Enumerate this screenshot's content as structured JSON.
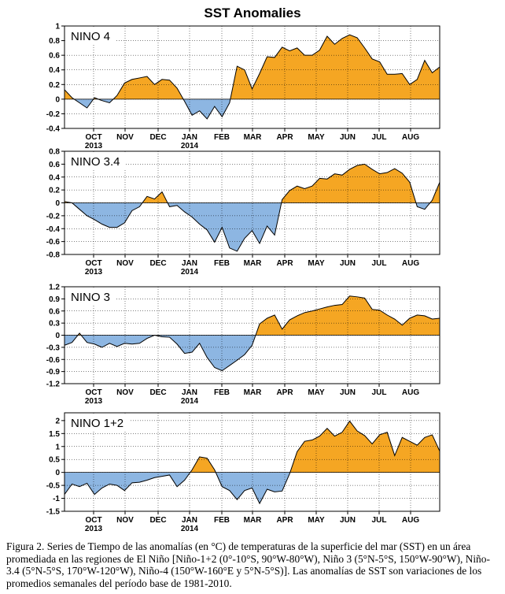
{
  "main_title": "SST Anomalies",
  "caption": "Figura 2. Series de Tiempo de las anomalías (en °C) de temperaturas de la superficie del mar (SST) en un área promediada en las regiones de El Niño [Niño-1+2 (0°-10°S, 90°W-80°W), Niño 3 (5°N-5°S, 150°W-90°W), Niño-3.4 (5°N-5°S, 170°W-120°W), Niño-4 (150°W-160°E y 5°N-5°S)]. Las anomalías de SST son variaciones de los promedios semanales del período base de 1981-2010.",
  "colors": {
    "positive": "#f5a623",
    "negative": "#8db6e2",
    "line": "#000000",
    "grid": "#000000"
  },
  "chart_data": [
    {
      "type": "area",
      "title": "NINO 4",
      "month_labels": [
        "OCT",
        "NOV",
        "DEC",
        "JAN",
        "FEB",
        "MAR",
        "APR",
        "MAY",
        "JUN",
        "JUL",
        "AUG"
      ],
      "year_labels": [
        {
          "month": "OCT",
          "year": "2013"
        },
        {
          "month": "JAN",
          "year": "2014"
        }
      ],
      "yticks": [
        "1",
        "0.8",
        "0.6",
        "0.4",
        "0.2",
        "0",
        "-0.2",
        "-0.4"
      ],
      "ylim": [
        -0.4,
        1
      ],
      "week": [
        0,
        1,
        2,
        3,
        4,
        5,
        6,
        7,
        8,
        9,
        10,
        11,
        12,
        13,
        14,
        15,
        16,
        17,
        18,
        19,
        20,
        21,
        22,
        23,
        24,
        25,
        26,
        27,
        28,
        29,
        30,
        31,
        32,
        33,
        34,
        35,
        36,
        37,
        38,
        39,
        40,
        41,
        42,
        43,
        44,
        45,
        46,
        47,
        48,
        49,
        50
      ],
      "values": [
        0.13,
        0.02,
        -0.05,
        -0.12,
        0.02,
        -0.02,
        -0.05,
        0.05,
        0.22,
        0.27,
        0.29,
        0.31,
        0.2,
        0.27,
        0.26,
        0.15,
        -0.03,
        -0.22,
        -0.16,
        -0.27,
        -0.1,
        -0.24,
        -0.05,
        0.45,
        0.4,
        0.14,
        0.35,
        0.58,
        0.57,
        0.71,
        0.66,
        0.7,
        0.6,
        0.6,
        0.67,
        0.86,
        0.75,
        0.83,
        0.88,
        0.84,
        0.7,
        0.55,
        0.51,
        0.34,
        0.34,
        0.35,
        0.2,
        0.27,
        0.53,
        0.36,
        0.44
      ]
    },
    {
      "type": "area",
      "title": "NINO 3.4",
      "month_labels": [
        "OCT",
        "NOV",
        "DEC",
        "JAN",
        "FEB",
        "MAR",
        "APR",
        "MAY",
        "JUN",
        "JUL",
        "AUG"
      ],
      "year_labels": [
        {
          "month": "OCT",
          "year": "2013"
        },
        {
          "month": "JAN",
          "year": "2014"
        }
      ],
      "yticks": [
        "0.8",
        "0.6",
        "0.4",
        "0.2",
        "0",
        "-0.2",
        "-0.4",
        "-0.6",
        "-0.8"
      ],
      "ylim": [
        -0.8,
        0.8
      ],
      "week": [
        0,
        1,
        2,
        3,
        4,
        5,
        6,
        7,
        8,
        9,
        10,
        11,
        12,
        13,
        14,
        15,
        16,
        17,
        18,
        19,
        20,
        21,
        22,
        23,
        24,
        25,
        26,
        27,
        28,
        29,
        30,
        31,
        32,
        33,
        34,
        35,
        36,
        37,
        38,
        39,
        40,
        41,
        42,
        43,
        44,
        45,
        46,
        47,
        48,
        49,
        50
      ],
      "values": [
        0.02,
        0.0,
        -0.1,
        -0.2,
        -0.26,
        -0.33,
        -0.38,
        -0.38,
        -0.31,
        -0.12,
        -0.06,
        0.1,
        0.06,
        0.17,
        -0.06,
        -0.04,
        -0.14,
        -0.22,
        -0.33,
        -0.42,
        -0.61,
        -0.38,
        -0.7,
        -0.75,
        -0.55,
        -0.43,
        -0.63,
        -0.36,
        -0.5,
        0.05,
        0.19,
        0.26,
        0.22,
        0.26,
        0.38,
        0.37,
        0.45,
        0.43,
        0.52,
        0.58,
        0.6,
        0.52,
        0.45,
        0.47,
        0.53,
        0.46,
        0.32,
        -0.06,
        -0.1,
        0.04,
        0.32
      ]
    },
    {
      "type": "area",
      "title": "NINO 3",
      "month_labels": [
        "OCT",
        "NOV",
        "DEC",
        "JAN",
        "FEB",
        "MAR",
        "APR",
        "MAY",
        "JUN",
        "JUL",
        "AUG"
      ],
      "year_labels": [
        {
          "month": "OCT",
          "year": "2013"
        },
        {
          "month": "JAN",
          "year": "2014"
        }
      ],
      "yticks": [
        "1.2",
        "0.9",
        "0.6",
        "0.3",
        "0",
        "-0.3",
        "-0.6",
        "-0.9",
        "-1.2"
      ],
      "ylim": [
        -1.2,
        1.2
      ],
      "week": [
        0,
        1,
        2,
        3,
        4,
        5,
        6,
        7,
        8,
        9,
        10,
        11,
        12,
        13,
        14,
        15,
        16,
        17,
        18,
        19,
        20,
        21,
        22,
        23,
        24,
        25,
        26,
        27,
        28,
        29,
        30,
        31,
        32,
        33,
        34,
        35,
        36,
        37,
        38,
        39,
        40,
        41,
        42,
        43,
        44,
        45,
        46,
        47,
        48,
        49,
        50
      ],
      "values": [
        -0.25,
        -0.18,
        0.05,
        -0.18,
        -0.22,
        -0.3,
        -0.2,
        -0.28,
        -0.2,
        -0.22,
        -0.2,
        -0.08,
        0.0,
        -0.04,
        -0.05,
        -0.22,
        -0.45,
        -0.42,
        -0.2,
        -0.55,
        -0.8,
        -0.88,
        -0.75,
        -0.62,
        -0.48,
        -0.25,
        0.28,
        0.42,
        0.5,
        0.15,
        0.38,
        0.48,
        0.56,
        0.6,
        0.65,
        0.7,
        0.74,
        0.76,
        0.97,
        0.95,
        0.92,
        0.64,
        0.62,
        0.5,
        0.4,
        0.25,
        0.42,
        0.5,
        0.48,
        0.4,
        0.42
      ]
    },
    {
      "type": "area",
      "title": "NINO 1+2",
      "month_labels": [
        "OCT",
        "NOV",
        "DEC",
        "JAN",
        "FEB",
        "MAR",
        "APR",
        "MAY",
        "JUN",
        "JUL",
        "AUG"
      ],
      "year_labels": [
        {
          "month": "OCT",
          "year": "2013"
        },
        {
          "month": "JAN",
          "year": "2014"
        }
      ],
      "yticks": [
        "2",
        "1.5",
        "1",
        "0.5",
        "0",
        "-0.5",
        "-1",
        "-1.5"
      ],
      "ylim": [
        -1.5,
        2.3
      ],
      "week": [
        0,
        1,
        2,
        3,
        4,
        5,
        6,
        7,
        8,
        9,
        10,
        11,
        12,
        13,
        14,
        15,
        16,
        17,
        18,
        19,
        20,
        21,
        22,
        23,
        24,
        25,
        26,
        27,
        28,
        29,
        30,
        31,
        32,
        33,
        34,
        35,
        36,
        37,
        38,
        39,
        40,
        41,
        42,
        43,
        44,
        45,
        46,
        47,
        48,
        49,
        50
      ],
      "values": [
        -0.85,
        -0.45,
        -0.55,
        -0.42,
        -0.85,
        -0.6,
        -0.45,
        -0.5,
        -0.7,
        -0.4,
        -0.38,
        -0.3,
        -0.2,
        -0.15,
        -0.1,
        -0.55,
        -0.3,
        0.1,
        0.6,
        0.55,
        0.1,
        -0.55,
        -0.7,
        -1.05,
        -0.7,
        -0.6,
        -1.2,
        -0.65,
        -0.75,
        -0.72,
        -0.05,
        0.8,
        1.2,
        1.25,
        1.4,
        1.7,
        1.4,
        1.55,
        1.98,
        1.6,
        1.42,
        1.1,
        1.45,
        1.55,
        0.65,
        1.35,
        1.2,
        1.05,
        1.35,
        1.45,
        0.82
      ]
    }
  ]
}
